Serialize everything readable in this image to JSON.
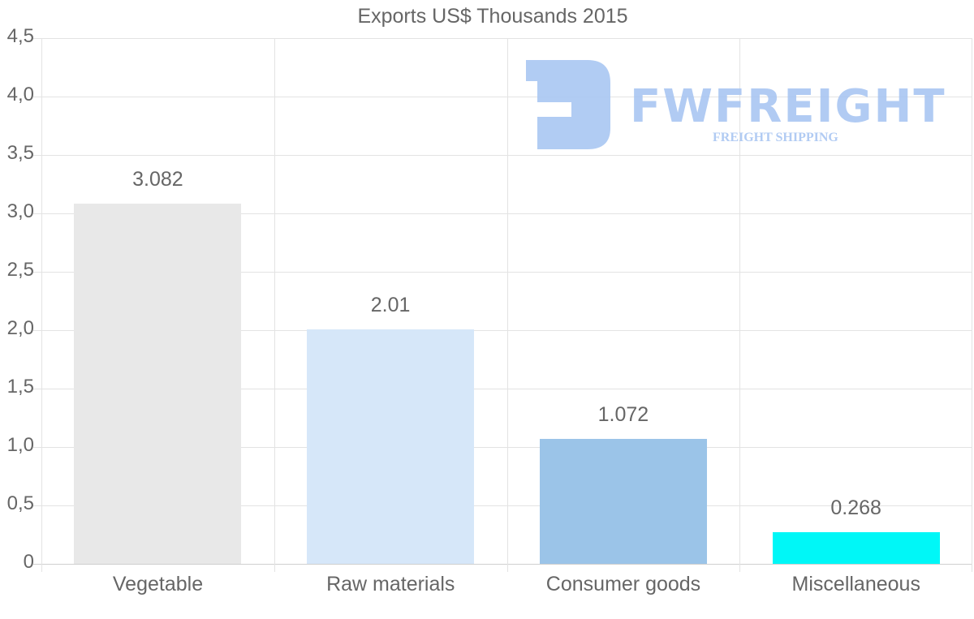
{
  "chart_data": {
    "type": "bar",
    "title": "Exports US$ Thousands 2015",
    "xlabel": "",
    "ylabel": "",
    "ylim": [
      0,
      4.5
    ],
    "yticks": [
      "0",
      "0,5",
      "1,0",
      "1,5",
      "2,0",
      "2,5",
      "3,0",
      "3,5",
      "4,0",
      "4,5"
    ],
    "categories": [
      "Vegetable",
      "Raw materials",
      "Consumer goods",
      "Miscellaneous"
    ],
    "values": [
      3.082,
      2.01,
      1.072,
      0.268
    ],
    "value_labels": [
      "3.082",
      "2.01",
      "1.072",
      "0.268"
    ],
    "colors": [
      "#e8e8e8",
      "#d6e7f9",
      "#9bc4e8",
      "#00f7f7"
    ],
    "grid": true,
    "legend": null
  },
  "watermark": {
    "brand": "FWFREIGHT",
    "tagline": "FREIGHT SHIPPING",
    "color": "#a9c6f2"
  }
}
